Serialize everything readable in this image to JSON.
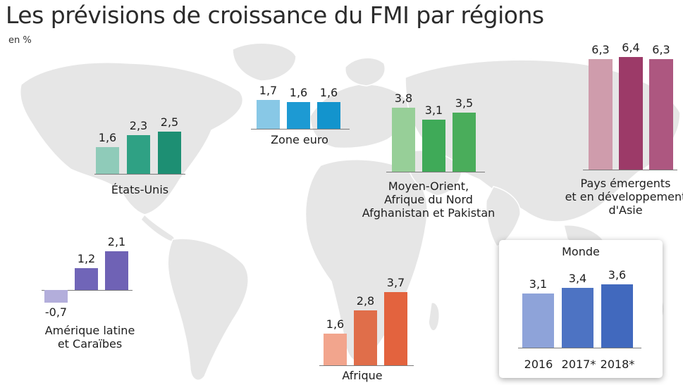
{
  "header": {
    "title": "Les prévisions de croissance du FMI par régions",
    "unit": "en %"
  },
  "chart_data": {
    "type": "bar",
    "title": "Les prévisions de croissance du FMI par régions",
    "ylabel": "en %",
    "categories": [
      "2016",
      "2017*",
      "2018*"
    ],
    "regions": [
      {
        "name": "États-Unis",
        "values": [
          1.6,
          2.3,
          2.5
        ],
        "value_labels": [
          "1,6",
          "2,3",
          "2,5"
        ],
        "colors": [
          "#8fcbb9",
          "#2fa184",
          "#1d8f73"
        ]
      },
      {
        "name": "Zone euro",
        "values": [
          1.7,
          1.6,
          1.6
        ],
        "value_labels": [
          "1,7",
          "1,6",
          "1,6"
        ],
        "colors": [
          "#88c8e6",
          "#1d9ad3",
          "#1394cd"
        ]
      },
      {
        "name": "Moyen-Orient,\nAfrique du Nord\nAfghanistan et Pakistan",
        "values": [
          3.8,
          3.1,
          3.5
        ],
        "value_labels": [
          "3,8",
          "3,1",
          "3,5"
        ],
        "colors": [
          "#97cf98",
          "#3faa58",
          "#4aad5b"
        ]
      },
      {
        "name": "Pays émergents\net en développement\nd'Asie",
        "values": [
          6.3,
          6.4,
          6.3
        ],
        "value_labels": [
          "6,3",
          "6,4",
          "6,3"
        ],
        "colors": [
          "#cf9cac",
          "#9c3a68",
          "#ad5780"
        ]
      },
      {
        "name": "Amérique latine\net Caraïbes",
        "values": [
          -0.7,
          1.2,
          2.1
        ],
        "value_labels": [
          "-0,7",
          "1,2",
          "2,1"
        ],
        "colors": [
          "#b3aedb",
          "#7065b8",
          "#6f62b5"
        ]
      },
      {
        "name": "Afrique",
        "values": [
          1.6,
          2.8,
          3.7
        ],
        "value_labels": [
          "1,6",
          "2,8",
          "3,7"
        ],
        "colors": [
          "#f2a58d",
          "#e06e4a",
          "#e3633e"
        ]
      },
      {
        "name": "Monde",
        "values": [
          3.1,
          3.4,
          3.6
        ],
        "value_labels": [
          "3,1",
          "3,4",
          "3,6"
        ],
        "colors": [
          "#8ea3d9",
          "#4d73c3",
          "#4169be"
        ]
      }
    ]
  }
}
